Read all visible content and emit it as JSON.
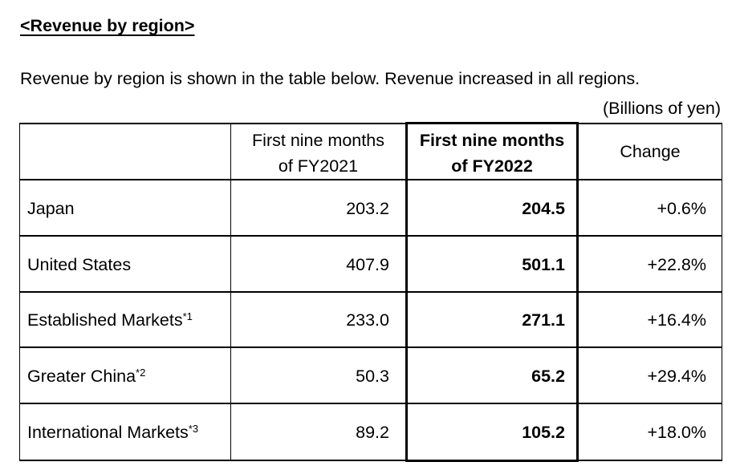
{
  "document": {
    "title": "<Revenue by region>",
    "intro": "Revenue by region is shown in the table below. Revenue increased in all regions.",
    "unit_note": "(Billions of yen)"
  },
  "table": {
    "columns": {
      "label": "",
      "prev_line1": "First nine months",
      "prev_line2": "of FY2021",
      "cur_line1": "First nine months",
      "cur_line2": "of FY2022",
      "change": "Change"
    },
    "rows": [
      {
        "label": "Japan",
        "sup": "",
        "fy2021": "203.2",
        "fy2022": "204.5",
        "change": "+0.6%"
      },
      {
        "label": "United States",
        "sup": "",
        "fy2021": "407.9",
        "fy2022": "501.1",
        "change": "+22.8%"
      },
      {
        "label": "Established Markets",
        "sup": "*1",
        "fy2021": "233.0",
        "fy2022": "271.1",
        "change": "+16.4%"
      },
      {
        "label": "Greater China",
        "sup": "*2",
        "fy2021": "50.3",
        "fy2022": "65.2",
        "change": "+29.4%"
      },
      {
        "label": "International Markets",
        "sup": "*3",
        "fy2021": "89.2",
        "fy2022": "105.2",
        "change": "+18.0%"
      }
    ]
  },
  "chart_data": {
    "type": "table",
    "title": "Revenue by region",
    "unit": "Billions of yen",
    "categories": [
      "Japan",
      "United States",
      "Established Markets",
      "Greater China",
      "International Markets"
    ],
    "series": [
      {
        "name": "First nine months of FY2021",
        "values": [
          203.2,
          407.9,
          233.0,
          50.3,
          89.2
        ]
      },
      {
        "name": "First nine months of FY2022",
        "values": [
          204.5,
          501.1,
          271.1,
          65.2,
          105.2
        ]
      },
      {
        "name": "Change",
        "values": [
          "+0.6%",
          "+22.8%",
          "+16.4%",
          "+29.4%",
          "+18.0%"
        ]
      }
    ]
  }
}
